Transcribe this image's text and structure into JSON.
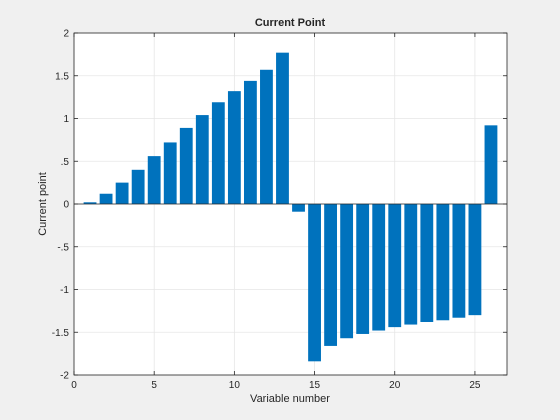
{
  "chart_data": {
    "type": "bar",
    "title": "Current Point",
    "xlabel": "Variable number",
    "ylabel": "Current point",
    "xlim": [
      0,
      27
    ],
    "ylim": [
      -2,
      2
    ],
    "xticks": [
      0,
      5,
      10,
      15,
      20,
      25
    ],
    "yticks": [
      -2,
      -1.5,
      -1,
      -0.5,
      0,
      0.5,
      1,
      1.5,
      2
    ],
    "grid": true,
    "bar_color": "#0072bd",
    "x": [
      1,
      2,
      3,
      4,
      5,
      6,
      7,
      8,
      9,
      10,
      11,
      12,
      13,
      14,
      15,
      16,
      17,
      18,
      19,
      20,
      21,
      22,
      23,
      24,
      25,
      26
    ],
    "values": [
      0.02,
      0.12,
      0.25,
      0.4,
      0.56,
      0.72,
      0.89,
      1.04,
      1.19,
      1.32,
      1.44,
      1.57,
      1.77,
      -0.09,
      -1.84,
      -1.66,
      -1.57,
      -1.52,
      -1.48,
      -1.44,
      -1.41,
      -1.38,
      -1.36,
      -1.33,
      -1.3,
      0.92
    ]
  }
}
